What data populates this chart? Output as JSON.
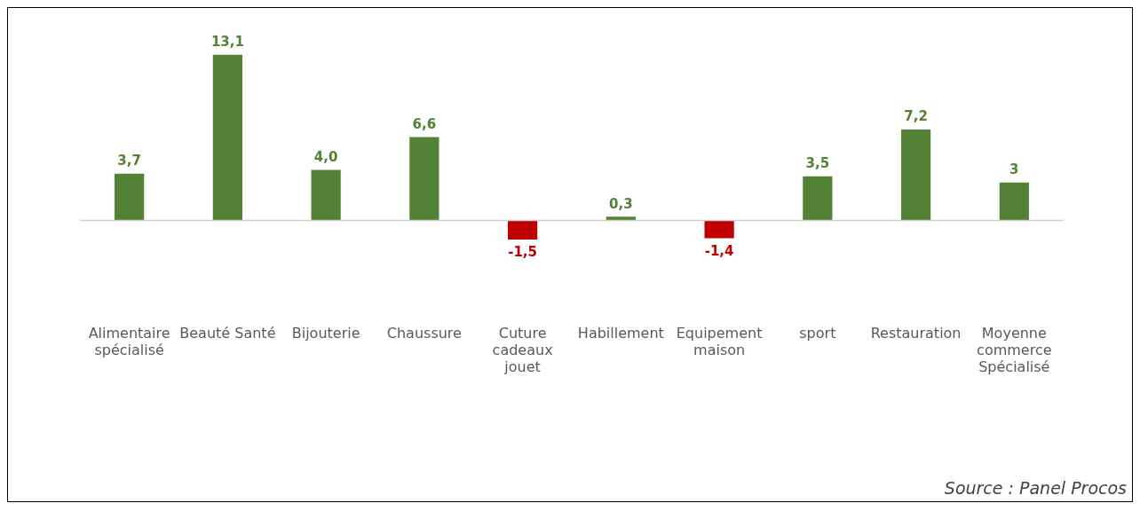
{
  "chart_data": {
    "type": "bar",
    "categories": [
      "Alimentaire spécialisé",
      "Beauté Santé",
      "Bijouterie",
      "Chaussure",
      "Cuture cadeaux jouet",
      "Habillement",
      "Equipement maison",
      "sport",
      "Restauration",
      "Moyenne commerce Spécialisé"
    ],
    "values": [
      3.7,
      13.1,
      4.0,
      6.6,
      -1.5,
      0.3,
      -1.4,
      3.5,
      7.2,
      3
    ],
    "colors": [
      "#538135",
      "#538135",
      "#538135",
      "#538135",
      "#c00000",
      "#538135",
      "#c00000",
      "#538135",
      "#538135",
      "#538135"
    ],
    "value_labels": [
      "3,7",
      "13,1",
      "4,0",
      "6,6",
      "-1,5",
      "0,3",
      "-1,4",
      "3,5",
      "7,2",
      "3"
    ],
    "annotations": [
      "Source : Panel Procos"
    ],
    "grid": false,
    "legend": false
  }
}
